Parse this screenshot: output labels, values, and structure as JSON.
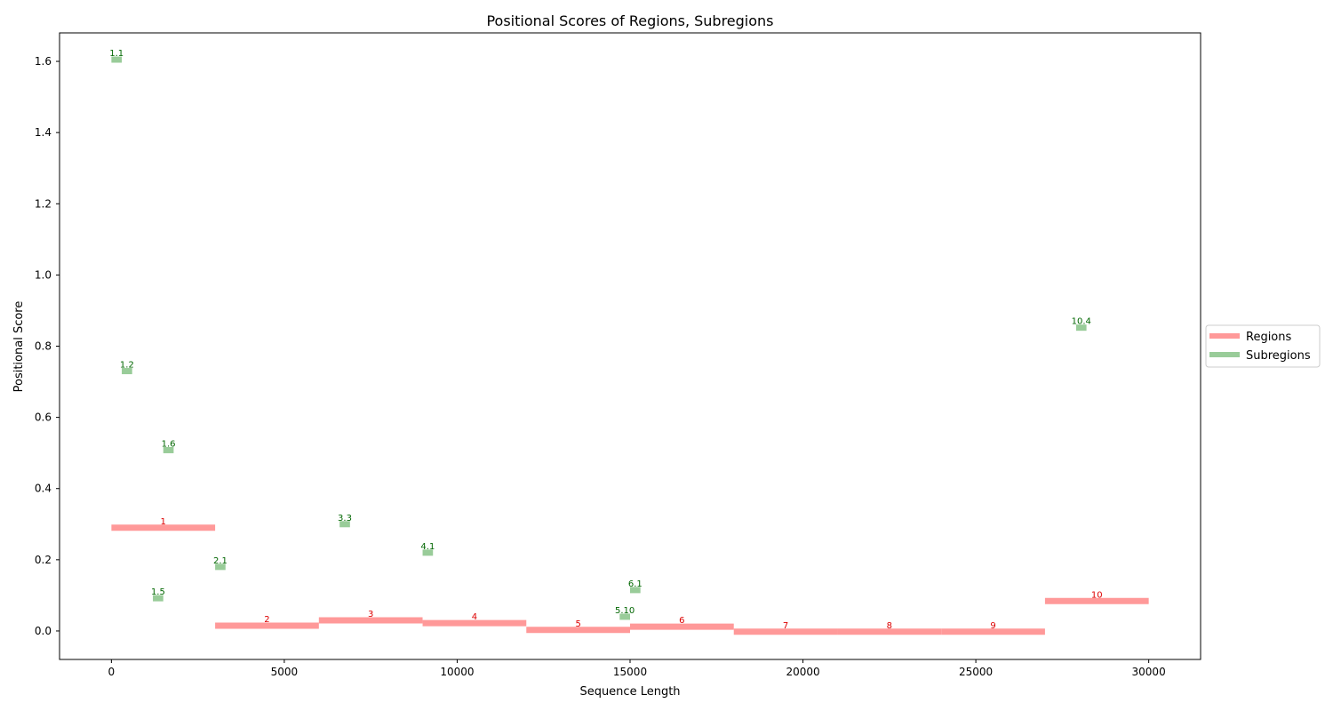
{
  "chart_data": {
    "type": "line",
    "title": "Positional Scores of Regions, Subregions",
    "xlabel": "Sequence Length",
    "ylabel": "Positional Score",
    "xlim": [
      -1500,
      31500
    ],
    "ylim": [
      -0.08,
      1.68
    ],
    "x_ticks": [
      0,
      5000,
      10000,
      15000,
      20000,
      25000,
      30000
    ],
    "y_ticks": [
      0.0,
      0.2,
      0.4,
      0.6,
      0.8,
      1.0,
      1.2,
      1.4,
      1.6
    ],
    "grid": false,
    "legend_position": "center-right, outside plot",
    "colors": {
      "regions": "#ff9999",
      "subregions": "#99cc99",
      "regions_label": "#dd0000",
      "subregions_label": "#006600"
    },
    "series": [
      {
        "name": "Regions",
        "segments": [
          {
            "label": "1",
            "x_start": 0,
            "x_end": 3000,
            "y": 0.29
          },
          {
            "label": "2",
            "x_start": 3000,
            "x_end": 6000,
            "y": 0.015
          },
          {
            "label": "3",
            "x_start": 6000,
            "x_end": 9000,
            "y": 0.03
          },
          {
            "label": "4",
            "x_start": 9000,
            "x_end": 12000,
            "y": 0.022
          },
          {
            "label": "5",
            "x_start": 12000,
            "x_end": 15000,
            "y": 0.003
          },
          {
            "label": "6",
            "x_start": 15000,
            "x_end": 18000,
            "y": 0.012
          },
          {
            "label": "7",
            "x_start": 18000,
            "x_end": 21000,
            "y": -0.002
          },
          {
            "label": "8",
            "x_start": 21000,
            "x_end": 24000,
            "y": -0.002
          },
          {
            "label": "9",
            "x_start": 24000,
            "x_end": 27000,
            "y": -0.002
          },
          {
            "label": "10",
            "x_start": 27000,
            "x_end": 30000,
            "y": 0.084
          }
        ]
      },
      {
        "name": "Subregions",
        "segments": [
          {
            "label": "1.1",
            "x_start": 0,
            "x_end": 300,
            "y": 1.605
          },
          {
            "label": "1.2",
            "x_start": 300,
            "x_end": 600,
            "y": 0.73
          },
          {
            "label": "1.5",
            "x_start": 1200,
            "x_end": 1500,
            "y": 0.092
          },
          {
            "label": "1.6",
            "x_start": 1500,
            "x_end": 1800,
            "y": 0.508
          },
          {
            "label": "2.1",
            "x_start": 3000,
            "x_end": 3300,
            "y": 0.18
          },
          {
            "label": "3.3",
            "x_start": 6600,
            "x_end": 6900,
            "y": 0.3
          },
          {
            "label": "4.1",
            "x_start": 9000,
            "x_end": 9300,
            "y": 0.22
          },
          {
            "label": "5.10",
            "x_start": 14700,
            "x_end": 15000,
            "y": 0.04
          },
          {
            "label": "6.1",
            "x_start": 15000,
            "x_end": 15300,
            "y": 0.115
          },
          {
            "label": "10.4",
            "x_start": 27900,
            "x_end": 28200,
            "y": 0.852
          }
        ]
      }
    ]
  },
  "legend": {
    "items": [
      {
        "label": "Regions",
        "color": "#ff9999"
      },
      {
        "label": "Subregions",
        "color": "#99cc99"
      }
    ]
  }
}
